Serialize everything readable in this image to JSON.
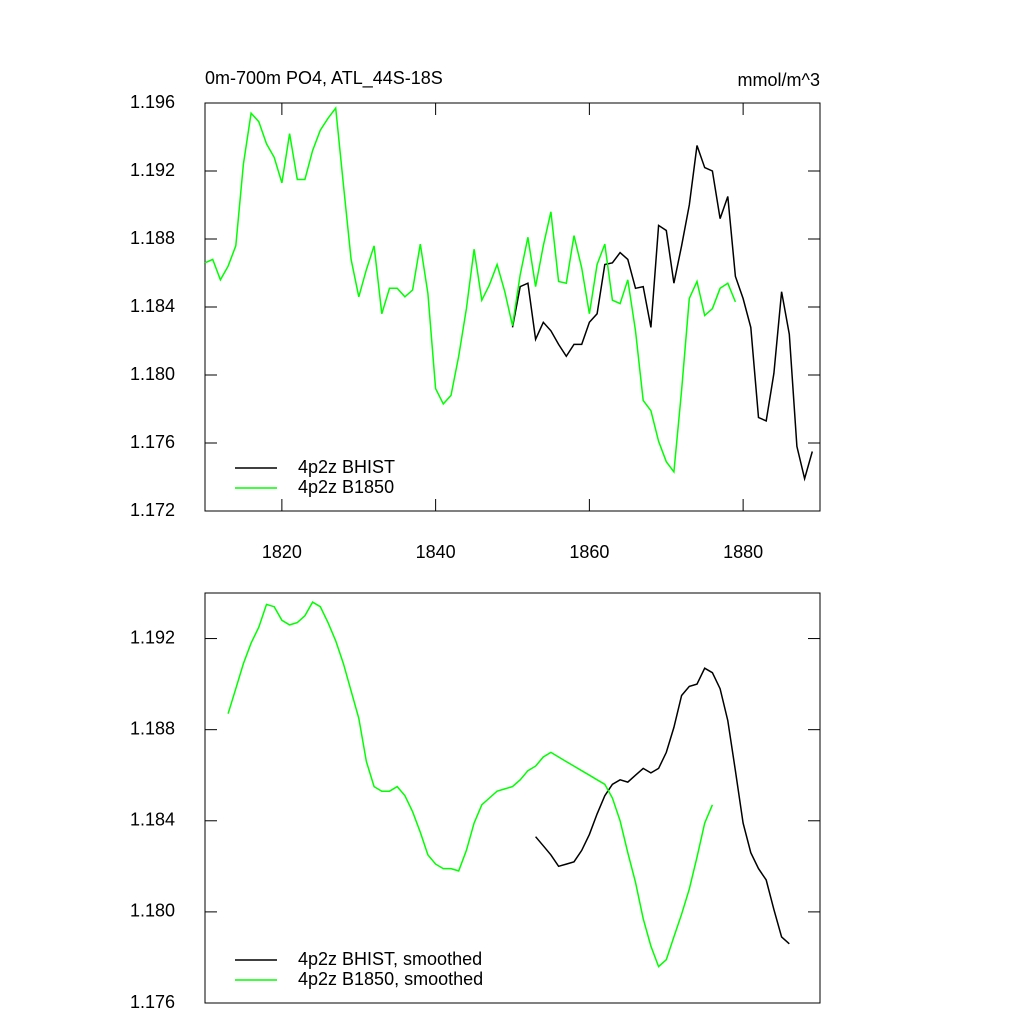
{
  "chart_data": [
    {
      "type": "line",
      "title": "0m-700m PO4, ATL_44S-18S",
      "units": "mmol/m^3",
      "x": [
        1810,
        1811,
        1812,
        1813,
        1814,
        1815,
        1816,
        1817,
        1818,
        1819,
        1820,
        1821,
        1822,
        1823,
        1824,
        1825,
        1826,
        1827,
        1828,
        1829,
        1830,
        1831,
        1832,
        1833,
        1834,
        1835,
        1836,
        1837,
        1838,
        1839,
        1840,
        1841,
        1842,
        1843,
        1844,
        1845,
        1846,
        1847,
        1848,
        1849,
        1850,
        1851,
        1852,
        1853,
        1854,
        1855,
        1856,
        1857,
        1858,
        1859,
        1860,
        1861,
        1862,
        1863,
        1864,
        1865,
        1866,
        1867,
        1868,
        1869,
        1870,
        1871,
        1872,
        1873,
        1874,
        1875,
        1876,
        1877,
        1878,
        1879,
        1880,
        1881,
        1882,
        1883,
        1884,
        1885,
        1886,
        1887,
        1888,
        1889
      ],
      "series": [
        {
          "name": "4p2z BHIST",
          "color": "#000000",
          "values": [
            null,
            null,
            null,
            null,
            null,
            null,
            null,
            null,
            null,
            null,
            null,
            null,
            null,
            null,
            null,
            null,
            null,
            null,
            null,
            null,
            null,
            null,
            null,
            null,
            null,
            null,
            null,
            null,
            null,
            null,
            null,
            null,
            null,
            null,
            null,
            null,
            null,
            null,
            null,
            null,
            1.1828,
            1.1852,
            1.1854,
            1.1821,
            1.1831,
            1.1826,
            1.1818,
            1.1811,
            1.1818,
            1.1818,
            1.1831,
            1.1836,
            1.1865,
            1.1866,
            1.1872,
            1.1868,
            1.1851,
            1.1852,
            1.1828,
            1.1888,
            1.1885,
            1.1854,
            1.1876,
            1.19,
            1.1935,
            1.1922,
            1.192,
            1.1892,
            1.1905,
            1.1858,
            1.1845,
            1.1828,
            1.1775,
            1.1773,
            1.1801,
            1.1849,
            1.1824,
            1.1758,
            1.1739,
            1.1755
          ]
        },
        {
          "name": "4p2z B1850",
          "color": "#00ff00",
          "values": [
            1.1866,
            1.1868,
            1.1856,
            1.1864,
            1.1876,
            1.1924,
            1.1954,
            1.1949,
            1.1936,
            1.1928,
            1.1913,
            1.1942,
            1.1915,
            1.1915,
            1.1932,
            1.1944,
            1.1951,
            1.1957,
            1.1912,
            1.1868,
            1.1846,
            1.1862,
            1.1876,
            1.1836,
            1.1851,
            1.1851,
            1.1846,
            1.185,
            1.1877,
            1.1848,
            1.1792,
            1.1783,
            1.1788,
            1.1811,
            1.1839,
            1.1874,
            1.1844,
            1.1853,
            1.1865,
            1.1849,
            1.1829,
            1.1859,
            1.1881,
            1.1852,
            1.1876,
            1.1896,
            1.1855,
            1.1854,
            1.1882,
            1.1863,
            1.1836,
            1.1865,
            1.1877,
            1.1844,
            1.1842,
            1.1856,
            1.1826,
            1.1785,
            1.1779,
            1.1761,
            1.1749,
            1.1743,
            1.1791,
            1.1845,
            1.1855,
            1.1835,
            1.1839,
            1.1851,
            1.1854,
            1.1843,
            null,
            null,
            null,
            null,
            null,
            null,
            null,
            null,
            null,
            null
          ]
        }
      ],
      "xlim": [
        1810,
        1890
      ],
      "xticks": [
        1820,
        1840,
        1860,
        1880
      ],
      "ylim": [
        1.172,
        1.196
      ],
      "yticks": [
        1.172,
        1.176,
        {
          "value": 1.18,
          "label": "1.180"
        },
        1.184,
        1.188,
        1.192,
        1.196
      ],
      "legend": "lower left"
    },
    {
      "type": "line",
      "x": [
        1813,
        1814,
        1815,
        1816,
        1817,
        1818,
        1819,
        1820,
        1821,
        1822,
        1823,
        1824,
        1825,
        1826,
        1827,
        1828,
        1829,
        1830,
        1831,
        1832,
        1833,
        1834,
        1835,
        1836,
        1837,
        1838,
        1839,
        1840,
        1841,
        1842,
        1843,
        1844,
        1845,
        1846,
        1847,
        1848,
        1849,
        1850,
        1851,
        1852,
        1853,
        1854,
        1855,
        1856,
        1857,
        1858,
        1859,
        1860,
        1861,
        1862,
        1863,
        1864,
        1865,
        1866,
        1867,
        1868,
        1869,
        1870,
        1871,
        1872,
        1873,
        1874,
        1875,
        1876,
        1877,
        1878,
        1879,
        1880,
        1881,
        1882,
        1883,
        1884,
        1885,
        1886
      ],
      "series": [
        {
          "name": "4p2z BHIST, smoothed",
          "color": "#000000",
          "values": [
            null,
            null,
            null,
            null,
            null,
            null,
            null,
            null,
            null,
            null,
            null,
            null,
            null,
            null,
            null,
            null,
            null,
            null,
            null,
            null,
            null,
            null,
            null,
            null,
            null,
            null,
            null,
            null,
            null,
            null,
            null,
            null,
            null,
            null,
            null,
            null,
            null,
            null,
            null,
            null,
            1.1833,
            1.1829,
            1.1825,
            1.182,
            1.1821,
            1.1822,
            1.1827,
            1.1834,
            1.1843,
            1.1851,
            1.1856,
            1.1858,
            1.1857,
            1.186,
            1.1863,
            1.1861,
            1.1863,
            1.187,
            1.1881,
            1.1895,
            1.1899,
            1.19,
            1.1907,
            1.1905,
            1.1898,
            1.1884,
            1.1862,
            1.1839,
            1.1826,
            1.1819,
            1.1814,
            1.1801,
            1.1789,
            1.1786
          ]
        },
        {
          "name": "4p2z B1850, smoothed",
          "color": "#00ff00",
          "values": [
            1.1887,
            1.1898,
            1.1909,
            1.1918,
            1.1925,
            1.1935,
            1.1934,
            1.1928,
            1.1926,
            1.1927,
            1.193,
            1.1936,
            1.1934,
            1.1927,
            1.1919,
            1.1909,
            1.1897,
            1.1885,
            1.1866,
            1.1855,
            1.1853,
            1.1853,
            1.1855,
            1.1851,
            1.1844,
            1.1835,
            1.1825,
            1.1821,
            1.1819,
            1.1819,
            1.1818,
            1.1827,
            1.1839,
            1.1847,
            1.185,
            1.1853,
            1.1854,
            1.1855,
            1.1858,
            1.1862,
            1.1864,
            1.1868,
            1.187,
            1.1868,
            1.1866,
            1.1864,
            1.1862,
            1.186,
            1.1858,
            1.1856,
            1.185,
            1.184,
            1.1826,
            1.1813,
            1.1797,
            1.1785,
            1.1776,
            1.1779,
            1.1789,
            1.1799,
            1.181,
            1.1824,
            1.1839,
            1.1847,
            null,
            null,
            null,
            null,
            null,
            null,
            null,
            null,
            null,
            null
          ]
        }
      ],
      "xlim": [
        1810,
        1890
      ],
      "ylim": [
        1.176,
        1.194
      ],
      "yticks": [
        1.176,
        {
          "value": 1.18,
          "label": "1.180"
        },
        1.184,
        1.188,
        1.192
      ],
      "legend": "lower left"
    }
  ]
}
